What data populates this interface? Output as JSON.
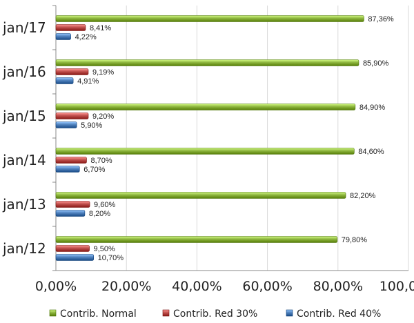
{
  "chart_data": {
    "type": "bar",
    "orientation": "horizontal",
    "categories": [
      "jan/17",
      "jan/16",
      "jan/15",
      "jan/14",
      "jan/13",
      "jan/12"
    ],
    "series": [
      {
        "name": "Contrib. Normal",
        "color": "#8DB53E",
        "values": [
          87.36,
          85.9,
          84.9,
          84.6,
          82.2,
          79.8
        ],
        "labels": [
          "87,36%",
          "85,90%",
          "84,90%",
          "84,60%",
          "82,20%",
          "79,80%"
        ]
      },
      {
        "name": "Contrib. Red 30%",
        "color": "#C0504D",
        "values": [
          8.41,
          9.19,
          9.2,
          8.7,
          9.6,
          9.5
        ],
        "labels": [
          "8,41%",
          "9,19%",
          "9,20%",
          "8,70%",
          "9,60%",
          "9,50%"
        ]
      },
      {
        "name": "Contrib. Red 40%",
        "color": "#4F81BD",
        "values": [
          4.22,
          4.91,
          5.9,
          6.7,
          8.2,
          10.7
        ],
        "labels": [
          "4,22%",
          "4,91%",
          "5,90%",
          "6,70%",
          "8,20%",
          "10,70%"
        ]
      }
    ],
    "xlim": [
      0,
      100
    ],
    "xticks": [
      "0,00%",
      "20,00%",
      "40,00%",
      "60,00%",
      "80,00%",
      "100,00%"
    ],
    "grid": true,
    "legend_position": "bottom"
  }
}
